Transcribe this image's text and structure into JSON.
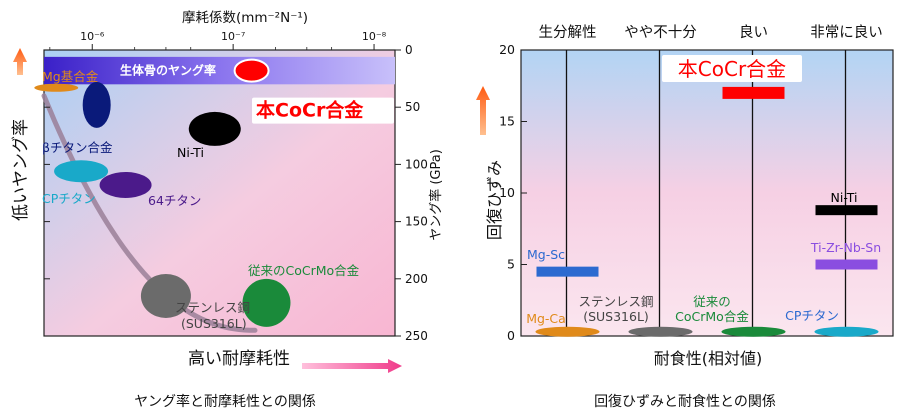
{
  "chart_data": [
    {
      "type": "scatter",
      "title": "ヤング率と耐摩耗性との関係",
      "x_axis": {
        "label": "摩耗係数(mm⁻²N⁻¹)",
        "scale": "log",
        "ticks": [
          "10⁻⁶",
          "10⁻⁷",
          "10⁻⁸"
        ],
        "range": [
          2.2e-06,
          7.1e-09
        ]
      },
      "y_axis": {
        "label": "ヤング率 (GPa)",
        "ticks": [
          "0",
          "50",
          "100",
          "150",
          "200",
          "250"
        ],
        "range": [
          0,
          250
        ],
        "inverted": true
      },
      "direction_labels": {
        "left": "低いヤング率",
        "bottom": "高い耐摩耗性"
      },
      "band": {
        "label": "生体骨のヤング率",
        "y_range": [
          6,
          30
        ]
      },
      "points": [
        {
          "label": "本CoCr合金",
          "x": 7.4e-08,
          "y": 18
        },
        {
          "label": "Mg基合金",
          "x": 1.8e-06,
          "y": 33
        },
        {
          "label": "βチタン合金",
          "x": 9.3e-07,
          "y": 48
        },
        {
          "label": "Ni-Ti",
          "x": 1.35e-07,
          "y": 69
        },
        {
          "label": "CPチタン",
          "x": 1.2e-06,
          "y": 106
        },
        {
          "label": "64チタン",
          "x": 5.8e-07,
          "y": 118
        },
        {
          "label": "ステンレス鋼",
          "label2": "(SUS316L)",
          "x": 3e-07,
          "y": 215
        },
        {
          "label": "従来のCoCrMo合金",
          "x": 5.8e-08,
          "y": 221
        }
      ]
    },
    {
      "type": "bar",
      "title": "回復ひずみと耐食性との関係",
      "x_axis": {
        "label": "耐食性(相対値)",
        "categories": [
          "生分解性",
          "やや不十分",
          "良い",
          "非常に良い"
        ]
      },
      "y_axis": {
        "label": "回復ひずみ",
        "ticks": [
          "0",
          "5",
          "10",
          "15",
          "20"
        ],
        "range": [
          0,
          20
        ]
      },
      "points": [
        {
          "label": "本CoCr合金",
          "category": "良い",
          "value": 17
        },
        {
          "label": "Ni-Ti",
          "category": "非常に良い",
          "value": 8.8
        },
        {
          "label": "Ti-Zr-Nb-Sn",
          "category": "非常に良い",
          "value": 5
        },
        {
          "label": "Mg-Sc",
          "category": "生分解性",
          "value": 4.5
        },
        {
          "label": "Mg-Ca",
          "category": "生分解性",
          "value": 0.3
        },
        {
          "label": "ステンレス鋼",
          "label2": "(SUS316L)",
          "category": "やや不十分",
          "value": 0.3
        },
        {
          "label": "従来の",
          "label2": "CoCrMo合金",
          "category": "良い",
          "value": 0.3
        },
        {
          "label": "CPチタン",
          "category": "非常に良い",
          "value": 0.3
        }
      ]
    }
  ],
  "colors": {
    "ours": "#ff0000",
    "bone_band": "#7b5cf0",
    "navy": "#0a1a7a",
    "purple": "#4b1a8a",
    "cyan": "#19a9c9",
    "gray": "#6b6b6b",
    "green": "#1a8a3a",
    "blue": "#2c6ad0",
    "violet": "#8a4ee0",
    "orange": "#e08a1a",
    "black": "#000000"
  }
}
